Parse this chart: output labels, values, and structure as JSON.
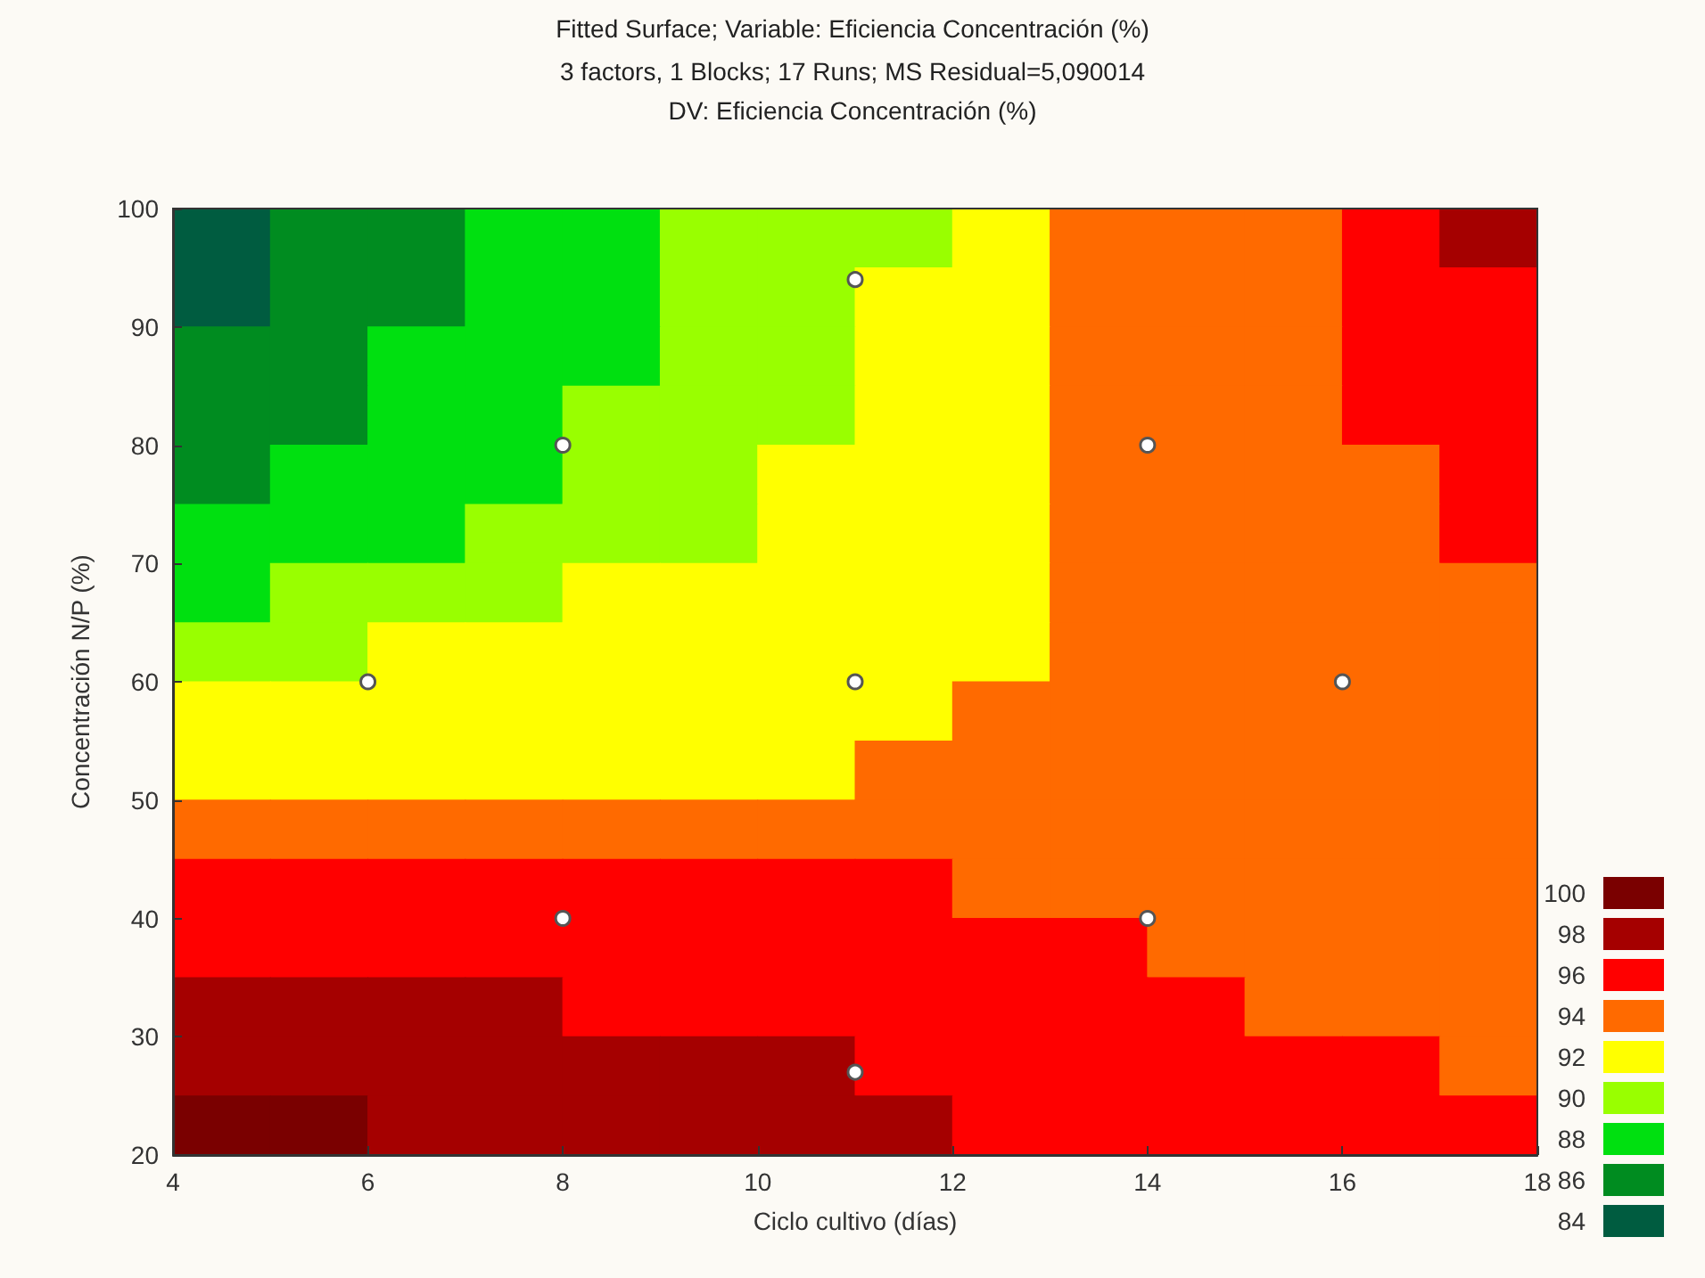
{
  "chart_data": [
    {
      "type": "heatmap",
      "title": "Fitted Surface; Variable: Eficiencia Concentración (%)",
      "subtitle": "3 factors, 1 Blocks; 17 Runs; MS Residual=5,090014\nDV: Eficiencia Concentración (%)",
      "categories": [
        null,
        null,
        null,
        null,
        null,
        null,
        null,
        null,
        null,
        null,
        null,
        null,
        null,
        null
      ],
      "y_categories": [
        null,
        null,
        null,
        null,
        null,
        null,
        null,
        null,
        null,
        null,
        null,
        null,
        null,
        null,
        null,
        null
      ],
      "cells": [
        [
          84,
          85,
          86,
          87,
          88,
          89,
          89,
          90,
          91,
          93,
          94,
          94,
          95,
          97
        ],
        [
          84,
          85,
          86,
          87,
          88,
          89,
          90,
          91,
          91,
          93,
          94,
          94,
          95,
          96
        ],
        [
          85,
          86,
          87,
          88,
          88,
          89,
          90,
          91,
          91,
          93,
          94,
          94,
          95,
          96
        ],
        [
          85,
          86,
          87,
          88,
          89,
          90,
          90,
          91,
          91,
          93,
          93,
          94,
          95,
          96
        ],
        [
          86,
          87,
          88,
          88,
          89,
          90,
          91,
          91,
          91,
          93,
          93,
          94,
          94,
          95
        ],
        [
          87,
          88,
          88,
          89,
          90,
          90,
          91,
          91,
          92,
          93,
          93,
          94,
          94,
          95
        ],
        [
          88,
          89,
          90,
          90,
          91,
          91,
          91,
          91,
          92,
          93,
          93,
          94,
          94,
          94
        ],
        [
          90,
          90,
          91,
          91,
          91,
          91,
          91,
          92,
          92,
          93,
          93,
          94,
          94,
          94
        ],
        [
          91,
          91,
          91,
          91,
          91,
          92,
          92,
          92,
          93,
          93,
          93,
          94,
          94,
          94
        ],
        [
          92,
          92,
          92,
          92,
          92,
          92,
          92,
          93,
          93,
          93,
          94,
          94,
          94,
          94
        ],
        [
          94,
          94,
          94,
          94,
          94,
          94,
          94,
          94,
          94,
          94,
          94,
          94,
          94,
          94
        ],
        [
          95,
          95,
          95,
          95,
          95,
          95,
          95,
          95,
          94,
          94,
          94,
          94,
          94,
          94
        ],
        [
          96,
          96,
          96,
          96,
          96,
          96,
          95,
          95,
          95,
          95,
          94,
          94,
          94,
          94
        ],
        [
          97,
          97,
          97,
          97,
          96,
          96,
          96,
          96,
          96,
          95,
          95,
          94,
          94,
          94
        ],
        [
          98,
          98,
          98,
          98,
          97,
          97,
          97,
          96,
          96,
          96,
          95,
          95,
          95,
          94
        ],
        [
          99,
          99,
          98,
          98,
          98,
          97,
          97,
          97,
          96,
          96,
          96,
          95,
          95,
          95
        ]
      ],
      "cticks": [
        100,
        98,
        96,
        94,
        92,
        90,
        88,
        86,
        84
      ],
      "colors": [
        "#7a0000",
        "#a50000",
        "#ff0000",
        "#ff6a00",
        "#ffff00",
        "#99ff00",
        "#00e010",
        "#008c20",
        "#005c40"
      ]
    },
    {
      "type": "scatter",
      "xlabel": "Ciclo cultivo (días)",
      "ylabel": "Concentración N/P (%)",
      "xlim": [
        4,
        18
      ],
      "xticks": [
        4,
        6,
        8,
        10,
        12,
        14,
        16,
        18
      ],
      "ylim": [
        20,
        100
      ],
      "yticks": [
        20,
        30,
        40,
        50,
        60,
        70,
        80,
        90,
        100
      ],
      "marker": "circle",
      "series": [
        {
          "color": "#ffffff",
          "x": [
            6,
            8,
            11,
            14,
            11,
            16,
            8,
            14,
            11
          ],
          "values": [
            60,
            80,
            94,
            80,
            60,
            60,
            40,
            40,
            27
          ]
        }
      ]
    }
  ]
}
